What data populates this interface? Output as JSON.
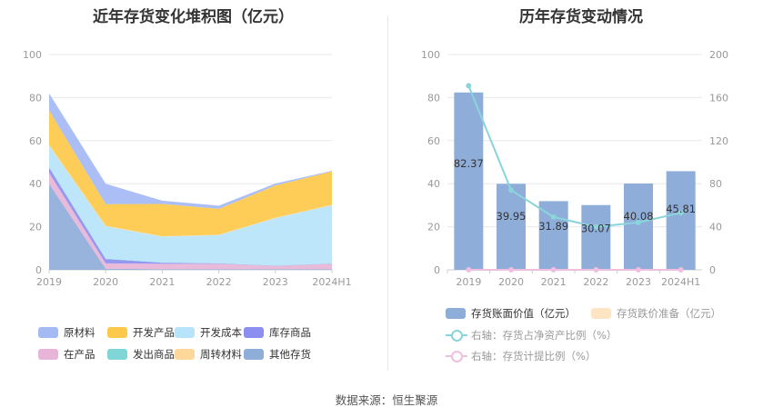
{
  "source": "数据来源：恒生聚源",
  "chart_data": [
    {
      "type": "area",
      "stacked": true,
      "title": "近年存货变化堆积图（亿元）",
      "categories": [
        "2019",
        "2020",
        "2021",
        "2022",
        "2023",
        "2024H1"
      ],
      "ylim": [
        0,
        100
      ],
      "yticks": [
        0,
        20,
        40,
        60,
        80,
        100
      ],
      "grid": true,
      "legend_position": "bottom",
      "series": [
        {
          "name": "其他存货",
          "color": "#8fadd9",
          "values": [
            40,
            0.5,
            0.3,
            0.3,
            0.3,
            0.3
          ]
        },
        {
          "name": "在产品",
          "color": "#e8b4d8",
          "values": [
            5,
            2.5,
            2.5,
            2.5,
            1.5,
            2.5
          ]
        },
        {
          "name": "库存商品",
          "color": "#8c8ff0",
          "values": [
            2.5,
            2,
            0.5,
            0.2,
            0.1,
            0.1
          ]
        },
        {
          "name": "发出商品",
          "color": "#80d6d6",
          "values": [
            0.2,
            0.2,
            0.1,
            0.1,
            0.1,
            0.1
          ]
        },
        {
          "name": "开发成本",
          "color": "#b7e4fa",
          "values": [
            10,
            15,
            12,
            13,
            22,
            27
          ]
        },
        {
          "name": "周转材料",
          "color": "#fdd89a",
          "values": [
            0.3,
            0.3,
            0.2,
            0.2,
            0.2,
            0.2
          ]
        },
        {
          "name": "开发产品",
          "color": "#fdc94a",
          "values": [
            16,
            10,
            15,
            12,
            15,
            15.5
          ]
        },
        {
          "name": "原材料",
          "color": "#a4baf5",
          "values": [
            8,
            9.5,
            1.5,
            1.5,
            0.9,
            0.3
          ]
        }
      ],
      "legend": [
        {
          "name": "原材料",
          "color": "#a4baf5"
        },
        {
          "name": "开发产品",
          "color": "#fdc94a"
        },
        {
          "name": "开发成本",
          "color": "#b7e4fa"
        },
        {
          "name": "库存商品",
          "color": "#8c8ff0"
        },
        {
          "name": "在产品",
          "color": "#e8b4d8"
        },
        {
          "name": "发出商品",
          "color": "#80d6d6"
        },
        {
          "name": "周转材料",
          "color": "#fdd89a"
        },
        {
          "name": "其他存货",
          "color": "#8fadd9"
        }
      ]
    },
    {
      "type": "bar",
      "title": "历年存货变动情况",
      "categories": [
        "2019",
        "2020",
        "2021",
        "2022",
        "2023",
        "2024H1"
      ],
      "ylim": [
        0,
        100
      ],
      "yticks": [
        0,
        20,
        40,
        60,
        80,
        100
      ],
      "y2lim": [
        0,
        200
      ],
      "y2ticks": [
        0,
        40,
        80,
        120,
        160,
        200
      ],
      "grid": true,
      "legend_position": "bottom",
      "series": [
        {
          "name": "存货账面价值（亿元）",
          "type": "bar",
          "color": "#8fadd9",
          "axis": "left",
          "values": [
            82.37,
            39.95,
            31.89,
            30.07,
            40.08,
            45.81
          ],
          "labels": [
            "82.37",
            "39.95",
            "31.89",
            "30.07",
            "40.08",
            "45.81"
          ]
        },
        {
          "name": "存货跌价准备（亿元）",
          "type": "bar",
          "color": "#fde5c3",
          "axis": "left",
          "values": [
            0,
            0,
            0,
            0,
            0,
            0
          ]
        },
        {
          "name": "右轴：存货占净资产比例（%）",
          "type": "line",
          "color": "#8ad4dc",
          "axis": "right",
          "values": [
            171,
            74,
            49,
            40,
            44,
            53
          ]
        },
        {
          "name": "右轴：存货计提比例（%）",
          "type": "line",
          "color": "#f0bfe0",
          "axis": "right",
          "values": [
            0,
            0,
            0,
            0,
            0,
            0
          ]
        }
      ]
    }
  ]
}
